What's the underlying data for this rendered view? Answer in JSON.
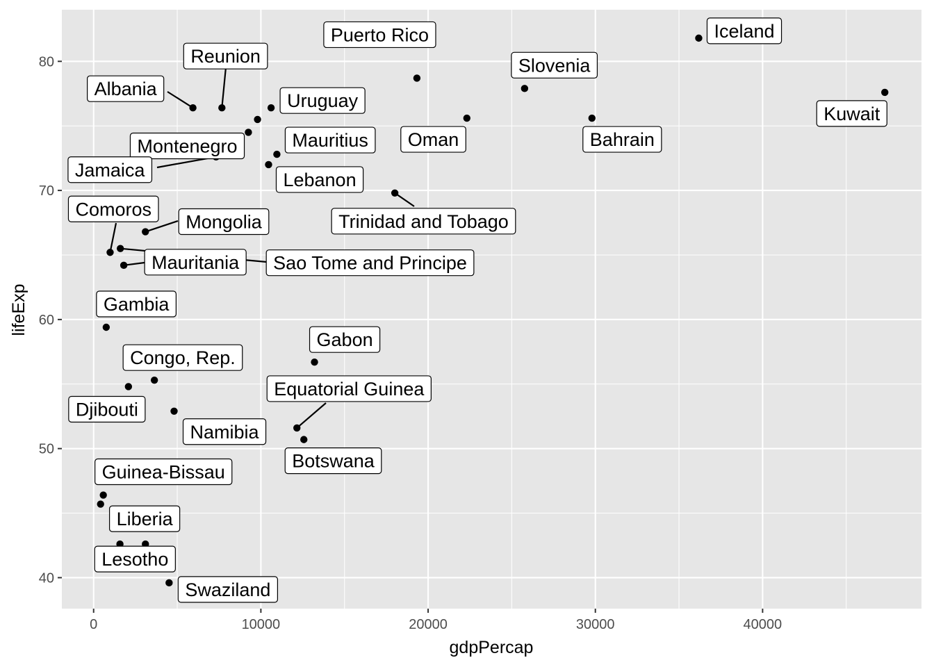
{
  "chart_data": {
    "type": "scatter",
    "title": "",
    "xlabel": "gdpPercap",
    "ylabel": "lifeExp",
    "xlim": [
      -1900,
      49500
    ],
    "ylim": [
      37.6,
      84.0
    ],
    "xticks": [
      0,
      10000,
      20000,
      30000,
      40000
    ],
    "xtick_labels": [
      "0",
      "10000",
      "20000",
      "30000",
      "40000"
    ],
    "yticks": [
      40,
      50,
      60,
      70,
      80
    ],
    "ytick_labels": [
      "40",
      "50",
      "60",
      "70",
      "80"
    ],
    "grid": true,
    "background": "#e6e6e6",
    "point_color": "#000000",
    "points": [
      {
        "label": "Iceland",
        "x": 36181,
        "y": 81.8
      },
      {
        "label": "Kuwait",
        "x": 47307,
        "y": 77.6
      },
      {
        "label": "Puerto Rico",
        "x": 19329,
        "y": 78.7
      },
      {
        "label": "Slovenia",
        "x": 25768,
        "y": 77.9
      },
      {
        "label": "Bahrain",
        "x": 29796,
        "y": 75.6
      },
      {
        "label": "Oman",
        "x": 22316,
        "y": 75.6
      },
      {
        "label": "Reunion",
        "x": 7670,
        "y": 76.4
      },
      {
        "label": "Albania",
        "x": 5937,
        "y": 76.4
      },
      {
        "label": "Uruguay",
        "x": 10611,
        "y": 76.4
      },
      {
        "label": "Montenegro",
        "x": 9254,
        "y": 74.5
      },
      {
        "label": "Mauritius",
        "x": 10957,
        "y": 72.8
      },
      {
        "label": "Lebanon",
        "x": 10461,
        "y": 72.0
      },
      {
        "label": "Jamaica",
        "x": 7321,
        "y": 72.6
      },
      {
        "label": "Trinidad and Tobago",
        "x": 18009,
        "y": 69.8
      },
      {
        "label": "Mongolia",
        "x": 3096,
        "y": 66.8
      },
      {
        "label": "Comoros",
        "x": 986,
        "y": 65.2
      },
      {
        "label": "Sao Tome and Principe",
        "x": 1598,
        "y": 65.5
      },
      {
        "label": "Mauritania",
        "x": 1803,
        "y": 64.2
      },
      {
        "label": "Gambia",
        "x": 753,
        "y": 59.4
      },
      {
        "label": "Gabon",
        "x": 13206,
        "y": 56.7
      },
      {
        "label": "Congo, Rep.",
        "x": 3633,
        "y": 55.3
      },
      {
        "label": "Djibouti",
        "x": 2082,
        "y": 54.8
      },
      {
        "label": "Namibia",
        "x": 4811,
        "y": 52.9
      },
      {
        "label": "Equatorial Guinea",
        "x": 12154,
        "y": 51.6
      },
      {
        "label": "Botswana",
        "x": 12570,
        "y": 50.7
      },
      {
        "label": "Guinea-Bissau",
        "x": 579,
        "y": 46.4
      },
      {
        "label": "Liberia",
        "x": 1573,
        "y": 42.6
      },
      {
        "label": "Lesotho",
        "x": 3097,
        "y": 42.6
      },
      {
        "label": "Swaziland",
        "x": 4513,
        "y": 39.6
      },
      {
        "label": "",
        "x": 3023,
        "y": 73.4
      },
      {
        "label": "",
        "x": 9800,
        "y": 75.5
      },
      {
        "label": "",
        "x": 415,
        "y": 45.7
      }
    ]
  }
}
